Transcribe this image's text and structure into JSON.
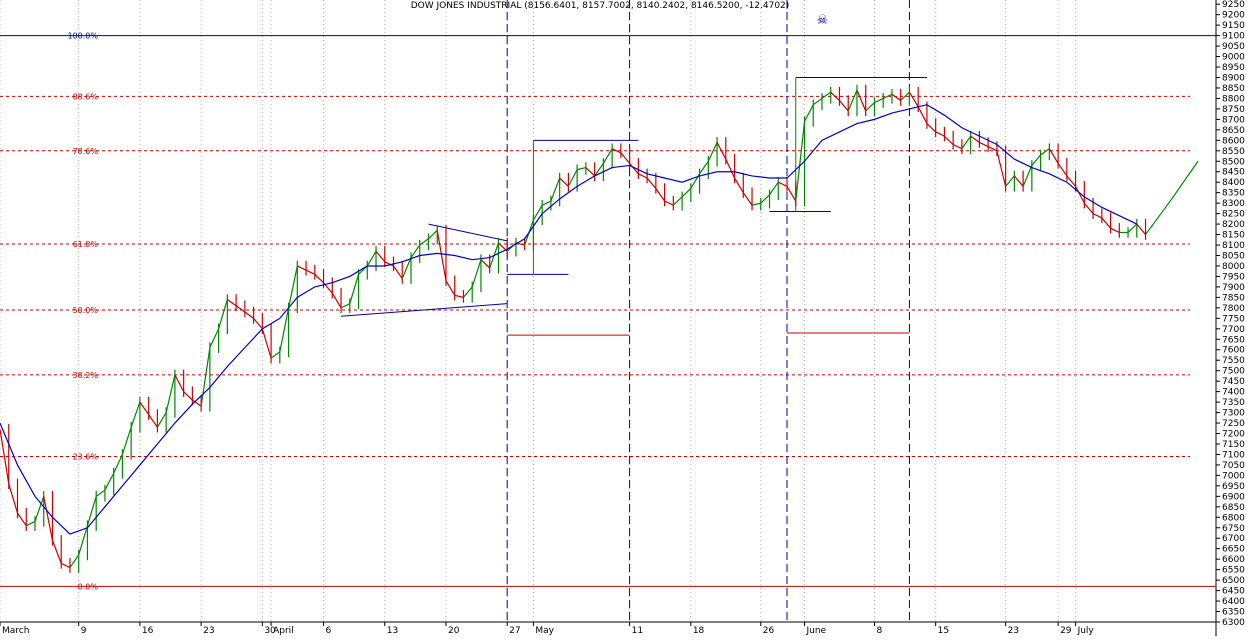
{
  "chart_data": {
    "type": "line",
    "title": "DOW JONES INDUSTRIAL (8156.6401, 8157.7002, 8140.2402, 8146.5200, -12.4702)",
    "ylim": [
      6300,
      9270
    ],
    "y_ticks": [
      6300,
      6350,
      6400,
      6450,
      6500,
      6550,
      6600,
      6650,
      6700,
      6750,
      6800,
      6850,
      6900,
      6950,
      7000,
      7050,
      7100,
      7150,
      7200,
      7250,
      7300,
      7350,
      7400,
      7450,
      7500,
      7550,
      7600,
      7650,
      7700,
      7750,
      7800,
      7850,
      7900,
      7950,
      8000,
      8050,
      8100,
      8150,
      8200,
      8250,
      8300,
      8350,
      8400,
      8450,
      8500,
      8550,
      8600,
      8650,
      8700,
      8750,
      8800,
      8850,
      8900,
      8950,
      9000,
      9050,
      9100,
      9150,
      9200,
      9250
    ],
    "x_labels": [
      {
        "text": "March",
        "day": 0
      },
      {
        "text": "9",
        "day": 9
      },
      {
        "text": "16",
        "day": 16
      },
      {
        "text": "23",
        "day": 23
      },
      {
        "text": "30",
        "day": 30
      },
      {
        "text": "April",
        "day": 31
      },
      {
        "text": "6",
        "day": 37
      },
      {
        "text": "13",
        "day": 44
      },
      {
        "text": "20",
        "day": 51
      },
      {
        "text": "27",
        "day": 58
      },
      {
        "text": "May",
        "day": 61
      },
      {
        "text": "11",
        "day": 72
      },
      {
        "text": "18",
        "day": 79
      },
      {
        "text": "26",
        "day": 87
      },
      {
        "text": "June",
        "day": 92
      },
      {
        "text": "8",
        "day": 100
      },
      {
        "text": "15",
        "day": 107
      },
      {
        "text": "23",
        "day": 115
      },
      {
        "text": "29",
        "day": 121
      },
      {
        "text": "July",
        "day": 123
      }
    ],
    "x_end_day": 137,
    "fib_levels": [
      {
        "label": "0.0%",
        "value": 6470,
        "color": "#cc0000",
        "style": "solid"
      },
      {
        "label": "23.6%",
        "value": 7090,
        "color": "#cc0000",
        "style": "dashed"
      },
      {
        "label": "38.2%",
        "value": 7480,
        "color": "#cc0000",
        "style": "dashed"
      },
      {
        "label": "50.0%",
        "value": 7790,
        "color": "#cc0000",
        "style": "dashed"
      },
      {
        "label": "61.8%",
        "value": 8105,
        "color": "#cc0000",
        "style": "dashed"
      },
      {
        "label": "78.6%",
        "value": 8550,
        "color": "#cc0000",
        "style": "dashed"
      },
      {
        "label": "88.6%",
        "value": 8810,
        "color": "#cc0000",
        "style": "dashed"
      },
      {
        "label": "100.0%",
        "value": 9100,
        "color": "#0000aa",
        "style": "solid"
      }
    ],
    "vertical_markers_day": [
      58,
      72,
      90,
      104
    ],
    "price_series": {
      "name": "",
      "days": [
        0,
        1,
        2,
        3,
        4,
        5,
        6,
        7,
        8,
        9,
        10,
        11,
        12,
        13,
        14,
        15,
        16,
        17,
        18,
        19,
        20,
        21,
        22,
        23,
        24,
        25,
        26,
        27,
        28,
        29,
        30,
        31,
        32,
        33,
        34,
        35,
        36,
        37,
        38,
        39,
        40,
        41,
        42,
        43,
        44,
        45,
        46,
        47,
        48,
        49,
        50,
        51,
        52,
        53,
        54,
        55,
        56,
        57,
        58,
        59,
        60,
        61,
        62,
        63,
        64,
        65,
        66,
        67,
        68,
        69,
        70,
        71,
        72,
        73,
        74,
        75,
        76,
        77,
        78,
        79,
        80,
        81,
        82,
        83,
        84,
        85,
        86,
        87,
        88,
        89,
        90,
        91,
        92,
        93,
        94,
        95,
        96,
        97,
        98,
        99,
        100,
        101,
        102,
        103,
        104,
        105,
        106,
        107,
        108,
        109,
        110,
        111,
        112,
        113,
        114,
        115,
        116,
        117,
        118,
        119,
        120,
        121,
        122,
        123,
        124,
        125,
        126,
        127,
        128,
        129,
        130,
        131
      ],
      "values": [
        7220,
        6960,
        6820,
        6760,
        6780,
        6900,
        6690,
        6580,
        6560,
        6620,
        6760,
        6900,
        6930,
        7010,
        7100,
        7230,
        7350,
        7290,
        7230,
        7300,
        7480,
        7400,
        7360,
        7330,
        7610,
        7700,
        7840,
        7810,
        7780,
        7750,
        7700,
        7560,
        7590,
        7800,
        8000,
        7980,
        7960,
        7920,
        7870,
        7800,
        7820,
        7960,
        8000,
        8070,
        8020,
        8000,
        7940,
        8040,
        8100,
        8130,
        8170,
        7930,
        7860,
        7850,
        7900,
        8030,
        7990,
        8110,
        8070,
        8110,
        8100,
        8220,
        8290,
        8310,
        8420,
        8380,
        8460,
        8470,
        8430,
        8490,
        8560,
        8540,
        8490,
        8440,
        8420,
        8370,
        8310,
        8290,
        8330,
        8370,
        8440,
        8500,
        8590,
        8510,
        8420,
        8350,
        8290,
        8300,
        8340,
        8400,
        8380,
        8310,
        8690,
        8770,
        8800,
        8830,
        8790,
        8740,
        8840,
        8740,
        8780,
        8800,
        8820,
        8790,
        8830,
        8760,
        8680,
        8640,
        8620,
        8580,
        8560,
        8620,
        8590,
        8570,
        8550,
        8380,
        8430,
        8380,
        8480,
        8530,
        8560,
        8490,
        8430,
        8380,
        8300,
        8250,
        8230,
        8180,
        8160,
        8160,
        8200,
        8150
      ],
      "forecast_days": [
        131,
        134,
        137
      ],
      "forecast_values": [
        8150,
        8320,
        8500
      ]
    },
    "moving_average": {
      "name": "",
      "days": [
        0,
        2,
        4,
        6,
        8,
        10,
        12,
        14,
        16,
        18,
        20,
        22,
        24,
        26,
        28,
        30,
        32,
        34,
        36,
        38,
        40,
        42,
        44,
        46,
        48,
        50,
        52,
        54,
        56,
        58,
        60,
        62,
        64,
        66,
        68,
        70,
        72,
        74,
        76,
        78,
        80,
        82,
        84,
        86,
        88,
        90,
        92,
        94,
        96,
        98,
        100,
        102,
        104,
        106,
        108,
        110,
        112,
        114,
        116,
        118,
        120,
        122,
        124,
        126,
        128,
        130
      ],
      "values": [
        7250,
        7050,
        6900,
        6800,
        6720,
        6750,
        6850,
        6950,
        7050,
        7150,
        7250,
        7340,
        7420,
        7520,
        7610,
        7700,
        7750,
        7850,
        7900,
        7920,
        7950,
        8000,
        8000,
        8020,
        8050,
        8060,
        8050,
        8030,
        8040,
        8080,
        8130,
        8250,
        8320,
        8380,
        8430,
        8470,
        8480,
        8440,
        8420,
        8400,
        8430,
        8450,
        8450,
        8430,
        8420,
        8420,
        8500,
        8600,
        8640,
        8680,
        8700,
        8730,
        8750,
        8770,
        8720,
        8660,
        8620,
        8580,
        8510,
        8470,
        8440,
        8400,
        8330,
        8280,
        8240,
        8200
      ]
    },
    "channel_lines": [
      {
        "color": "#0000aa",
        "points": [
          [
            39,
            7760
          ],
          [
            58,
            7820
          ]
        ]
      },
      {
        "color": "#0000aa",
        "points": [
          [
            49,
            8200
          ],
          [
            58,
            8120
          ]
        ]
      },
      {
        "color": "#0000aa",
        "points": [
          [
            58,
            7960
          ],
          [
            65,
            7960
          ]
        ]
      },
      {
        "color": "#0000aa",
        "points": [
          [
            61,
            8600
          ],
          [
            73,
            8600
          ]
        ]
      },
      {
        "color": "#cc0000",
        "points": [
          [
            58,
            7670
          ],
          [
            72,
            7670
          ]
        ]
      },
      {
        "color": "#0000aa",
        "points": [
          [
            88,
            8260
          ],
          [
            95,
            8260
          ]
        ]
      },
      {
        "color": "#0000aa",
        "points": [
          [
            91,
            8900
          ],
          [
            106,
            8900
          ]
        ]
      },
      {
        "color": "#cc0000",
        "points": [
          [
            90,
            7680
          ],
          [
            104,
            7680
          ]
        ]
      },
      {
        "color": "#008800",
        "points": [
          [
            61,
            8600
          ],
          [
            61,
            7960
          ]
        ]
      },
      {
        "color": "#008800",
        "points": [
          [
            91,
            8900
          ],
          [
            91,
            8260
          ]
        ]
      }
    ],
    "colors": {
      "up": "#008800",
      "down": "#cc0000",
      "ma": "#0000cc",
      "grid": "#bbbbbb",
      "vmarker": "#0000aa"
    },
    "grid": true,
    "skull_marker": "☠"
  }
}
